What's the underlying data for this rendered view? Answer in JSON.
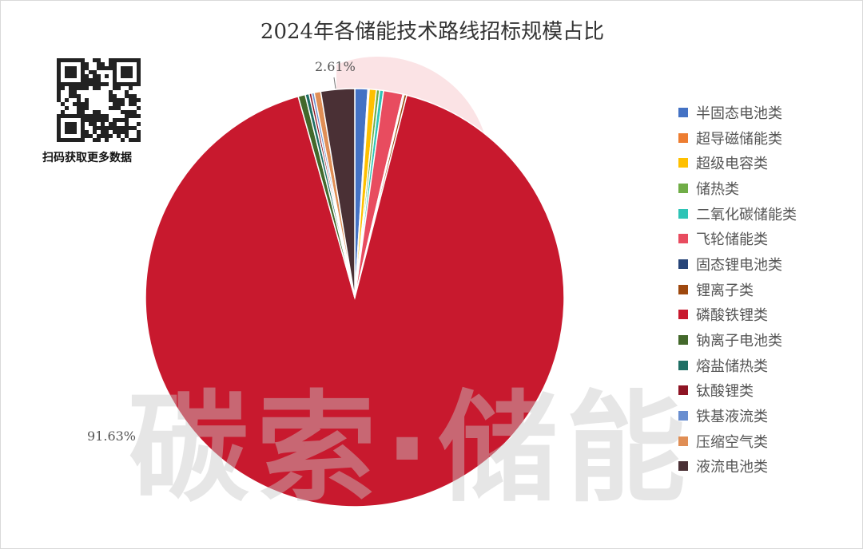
{
  "chart_data": {
    "type": "pie",
    "title": "2024年各储能技术路线招标规模占比",
    "start": "12 o'clock, clockwise",
    "legend_position": "right",
    "slices": [
      {
        "name": "半固态电池类",
        "value": 1.0,
        "color": "#4472C4"
      },
      {
        "name": "超导磁储能类",
        "value": 0.1,
        "color": "#ED7D31"
      },
      {
        "name": "超级电容类",
        "value": 0.55,
        "color": "#FFC000"
      },
      {
        "name": "储热类",
        "value": 0.25,
        "color": "#70AD47"
      },
      {
        "name": "二氧化碳储能类",
        "value": 0.3,
        "color": "#2EC4B6"
      },
      {
        "name": "飞轮储能类",
        "value": 1.5,
        "color": "#E84C5F"
      },
      {
        "name": "固态锂电池类",
        "value": 0.1,
        "color": "#264478"
      },
      {
        "name": "锂离子类",
        "value": 0.2,
        "color": "#9E480E"
      },
      {
        "name": "磷酸铁锂类",
        "value": 91.63,
        "color": "#C8192E",
        "label": "91.63%"
      },
      {
        "name": "钠离子电池类",
        "value": 0.55,
        "color": "#43682B"
      },
      {
        "name": "熔盐储热类",
        "value": 0.3,
        "color": "#1E6E64"
      },
      {
        "name": "钛酸锂类",
        "value": 0.2,
        "color": "#8E1424"
      },
      {
        "name": "铁基液流类",
        "value": 0.2,
        "color": "#698ED0"
      },
      {
        "name": "压缩空气类",
        "value": 0.5,
        "color": "#E08E55"
      },
      {
        "name": "液流电池类",
        "value": 2.61,
        "color": "#4A3035",
        "label": "2.61%"
      }
    ]
  },
  "watermark": "碳索·储能",
  "qr_label": "扫码获取更多数据"
}
